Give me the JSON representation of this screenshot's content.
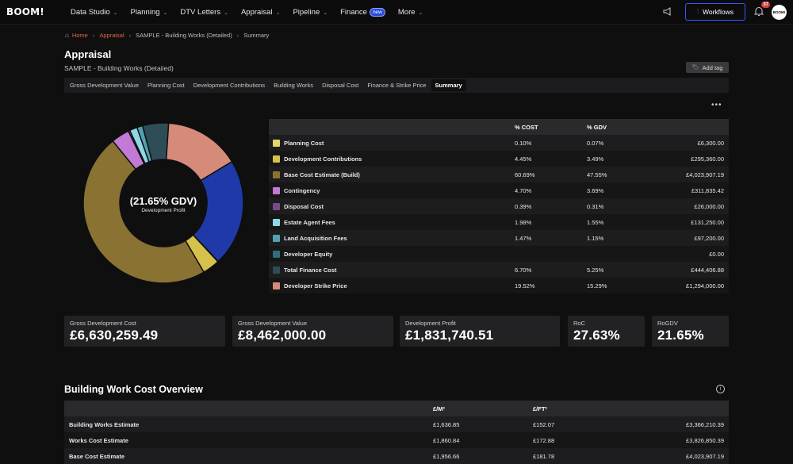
{
  "brand": {
    "logo": "BOOM!"
  },
  "nav": {
    "items": [
      {
        "label": "Data Studio",
        "chevron": true
      },
      {
        "label": "Planning",
        "chevron": true
      },
      {
        "label": "DTV Letters",
        "chevron": true
      },
      {
        "label": "Appraisal",
        "chevron": true
      },
      {
        "label": "Pipeline",
        "chevron": true
      },
      {
        "label": "Finance",
        "badge": "new"
      },
      {
        "label": "More",
        "chevron": true
      }
    ],
    "workflows_label": "Workflows",
    "notification_count": "37",
    "avatar_text": "BOOM!"
  },
  "breadcrumb": {
    "home": "Home",
    "appraisal": "Appraisal",
    "project": "SAMPLE - Building Works (Detailed)",
    "current": "Summary"
  },
  "page": {
    "title": "Appraisal",
    "subtitle": "SAMPLE - Building Works (Detaiied)",
    "add_tag": "Add tag"
  },
  "tabs": [
    {
      "label": "Gross Development Value",
      "active": false
    },
    {
      "label": "Planning Cost",
      "active": false
    },
    {
      "label": "Development Contributions",
      "active": false
    },
    {
      "label": "Building Works",
      "active": false
    },
    {
      "label": "Disposal Cost",
      "active": false
    },
    {
      "label": "Finance & Strike Price",
      "active": false
    },
    {
      "label": "Summary",
      "active": true
    }
  ],
  "donut": {
    "center_value": "(21.65% GDV)",
    "center_label": "Development Profit"
  },
  "cost_table": {
    "headers": {
      "name": "",
      "cost": "% COST",
      "gdv": "% GDV",
      "value": ""
    },
    "rows": [
      {
        "name": "Planning Cost",
        "cost": "0.10%",
        "gdv": "0.07%",
        "value": "£6,300.00",
        "color": "#e6d66a"
      },
      {
        "name": "Development Contributions",
        "cost": "4.45%",
        "gdv": "3.49%",
        "value": "£295,360.00",
        "color": "#d4c24a"
      },
      {
        "name": "Base Cost Estimate (Build)",
        "cost": "60.69%",
        "gdv": "47.55%",
        "value": "£4,023,907.19",
        "color": "#8a7232"
      },
      {
        "name": "Contingency",
        "cost": "4.70%",
        "gdv": "3.69%",
        "value": "£311,835.42",
        "color": "#c27ad4"
      },
      {
        "name": "Disposal Cost",
        "cost": "0.39%",
        "gdv": "0.31%",
        "value": "£26,000.00",
        "color": "#7a4a8c"
      },
      {
        "name": "Estate Agent Fees",
        "cost": "1.98%",
        "gdv": "1.55%",
        "value": "£131,250.00",
        "color": "#8fd7e6"
      },
      {
        "name": "Land Acquisition Fees",
        "cost": "1.47%",
        "gdv": "1.15%",
        "value": "£97,200.00",
        "color": "#4fa3b0"
      },
      {
        "name": "Developer Equity",
        "cost": "",
        "gdv": "",
        "value": "£0.00",
        "color": "#2f6e7a"
      },
      {
        "name": "Total Finance Cost",
        "cost": "6.70%",
        "gdv": "5.25%",
        "value": "£444,406.88",
        "color": "#2f4d57"
      },
      {
        "name": "Developer Strike Price",
        "cost": "19.52%",
        "gdv": "15.29%",
        "value": "£1,294,000.00",
        "color": "#d68a7a"
      }
    ]
  },
  "chart_data": {
    "type": "pie",
    "title": "",
    "labels": [
      "Planning Cost",
      "Development Contributions",
      "Base Cost Estimate (Build)",
      "Contingency",
      "Disposal Cost",
      "Estate Agent Fees",
      "Land Acquisition Fees",
      "Developer Equity",
      "Total Finance Cost",
      "Developer Strike Price",
      "Development Profit"
    ],
    "values": [
      0.07,
      3.49,
      47.55,
      3.69,
      0.31,
      1.55,
      1.15,
      0,
      5.25,
      15.29,
      21.65
    ],
    "colors": [
      "#e6d66a",
      "#d4c24a",
      "#8a7232",
      "#c27ad4",
      "#7a4a8c",
      "#8fd7e6",
      "#4fa3b0",
      "#2f6e7a",
      "#2f4d57",
      "#d68a7a",
      "#1f3aa8"
    ],
    "donut": true
  },
  "metrics": [
    {
      "label": "Gross Development Cost",
      "value": "£6,630,259.49"
    },
    {
      "label": "Gross Development Value",
      "value": "£8,462,000.00"
    },
    {
      "label": "Development Profit",
      "value": "£1,831,740.51"
    },
    {
      "label": "RoC",
      "value": "27.63%"
    },
    {
      "label": "RoGDV",
      "value": "21.65%"
    }
  ],
  "building_works": {
    "title": "Building Work Cost Overview",
    "headers": {
      "name": "",
      "m2": "£/M²",
      "ft2": "£/FT²",
      "total": ""
    },
    "rows": [
      {
        "name": "Building Works Estimate",
        "m2": "£1,636.85",
        "ft2": "£152.07",
        "total": "£3,366,210.39"
      },
      {
        "name": "Works Cost Estimate",
        "m2": "£1,860.84",
        "ft2": "£172.88",
        "total": "£3,826,850.39"
      },
      {
        "name": "Base Cost Estimate",
        "m2": "£1,956.66",
        "ft2": "£181.78",
        "total": "£4,023,907.19"
      }
    ]
  }
}
